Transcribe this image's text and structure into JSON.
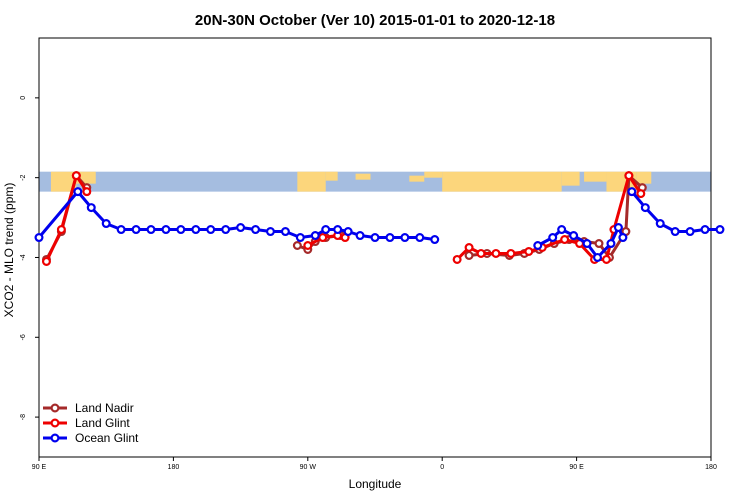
{
  "chart_data": {
    "type": "line",
    "title": "20N-30N October (Ver 10)   2015-01-01 to 2020-12-18",
    "xlabel": "Longitude",
    "ylabel": "XCO2 - MLO trend (ppm)",
    "xlim": [
      90,
      540
    ],
    "ylim": [
      -9,
      1.5
    ],
    "x_ticks": [
      {
        "value": 90,
        "label": "90 E"
      },
      {
        "value": 180,
        "label": "180"
      },
      {
        "value": 270,
        "label": "90 W"
      },
      {
        "value": 360,
        "label": "0"
      },
      {
        "value": 450,
        "label": "90 E"
      },
      {
        "value": 540,
        "label": "180"
      }
    ],
    "y_ticks": [
      {
        "value": 0,
        "label": "0"
      },
      {
        "value": -2,
        "label": "-2"
      },
      {
        "value": -4,
        "label": "-4"
      },
      {
        "value": -6,
        "label": "-6"
      },
      {
        "value": -8,
        "label": "-8"
      }
    ],
    "map_band": {
      "ymin": -2.35,
      "ymax": -1.85,
      "ocean_color": "#a5bde0",
      "land_color": "#fcd67c"
    },
    "legend_position": "bottom-left",
    "series": [
      {
        "name": "Land Nadir",
        "color": "#a52a2a",
        "segments": [
          [
            [
              95,
              -4.05
            ],
            [
              105,
              -3.35
            ],
            [
              115,
              -1.95
            ],
            [
              122,
              -2.25
            ]
          ],
          [
            [
              263,
              -3.7
            ],
            [
              270,
              -3.8
            ],
            [
              275,
              -3.6
            ],
            [
              282,
              -3.5
            ],
            [
              292,
              -3.45
            ]
          ],
          [
            [
              378,
              -3.95
            ],
            [
              390,
              -3.9
            ],
            [
              405,
              -3.95
            ],
            [
              415,
              -3.9
            ],
            [
              425,
              -3.8
            ],
            [
              435,
              -3.65
            ],
            [
              445,
              -3.55
            ],
            [
              455,
              -3.6
            ],
            [
              465,
              -3.65
            ],
            [
              472,
              -4.0
            ],
            [
              483,
              -3.35
            ],
            [
              485,
              -1.95
            ],
            [
              494,
              -2.25
            ]
          ]
        ]
      },
      {
        "name": "Land Glint",
        "color": "#ee0000",
        "segments": [
          [
            [
              95,
              -4.1
            ],
            [
              105,
              -3.3
            ],
            [
              115,
              -1.95
            ],
            [
              122,
              -2.35
            ]
          ],
          [
            [
              270,
              -3.7
            ],
            [
              280,
              -3.5
            ],
            [
              290,
              -3.45
            ],
            [
              295,
              -3.5
            ]
          ],
          [
            [
              370,
              -4.05
            ],
            [
              378,
              -3.75
            ],
            [
              386,
              -3.9
            ],
            [
              396,
              -3.9
            ],
            [
              406,
              -3.9
            ],
            [
              418,
              -3.85
            ],
            [
              427,
              -3.75
            ],
            [
              442,
              -3.55
            ],
            [
              452,
              -3.65
            ],
            [
              462,
              -4.05
            ],
            [
              470,
              -4.05
            ],
            [
              475,
              -3.3
            ],
            [
              485,
              -1.95
            ],
            [
              493,
              -2.4
            ]
          ]
        ]
      },
      {
        "name": "Ocean Glint",
        "color": "#0000ee",
        "segments": [
          [
            [
              90,
              -3.5
            ],
            [
              116,
              -2.35
            ],
            [
              125,
              -2.75
            ],
            [
              135,
              -3.15
            ],
            [
              145,
              -3.3
            ],
            [
              155,
              -3.3
            ],
            [
              165,
              -3.3
            ],
            [
              175,
              -3.3
            ],
            [
              185,
              -3.3
            ],
            [
              195,
              -3.3
            ],
            [
              205,
              -3.3
            ],
            [
              215,
              -3.3
            ],
            [
              225,
              -3.25
            ],
            [
              235,
              -3.3
            ],
            [
              245,
              -3.35
            ],
            [
              255,
              -3.35
            ],
            [
              265,
              -3.5
            ],
            [
              275,
              -3.45
            ],
            [
              282,
              -3.3
            ],
            [
              290,
              -3.3
            ],
            [
              297,
              -3.35
            ],
            [
              305,
              -3.45
            ],
            [
              315,
              -3.5
            ],
            [
              325,
              -3.5
            ],
            [
              335,
              -3.5
            ],
            [
              345,
              -3.5
            ],
            [
              355,
              -3.55
            ]
          ],
          [
            [
              424,
              -3.7
            ],
            [
              434,
              -3.5
            ],
            [
              440,
              -3.3
            ],
            [
              448,
              -3.45
            ],
            [
              457,
              -3.65
            ],
            [
              464,
              -4.0
            ],
            [
              473,
              -3.65
            ],
            [
              478,
              -3.25
            ],
            [
              481,
              -3.5
            ]
          ],
          [
            [
              487,
              -2.35
            ],
            [
              496,
              -2.75
            ],
            [
              506,
              -3.15
            ],
            [
              516,
              -3.35
            ],
            [
              526,
              -3.35
            ],
            [
              536,
              -3.3
            ],
            [
              546,
              -3.3
            ]
          ]
        ]
      }
    ]
  }
}
